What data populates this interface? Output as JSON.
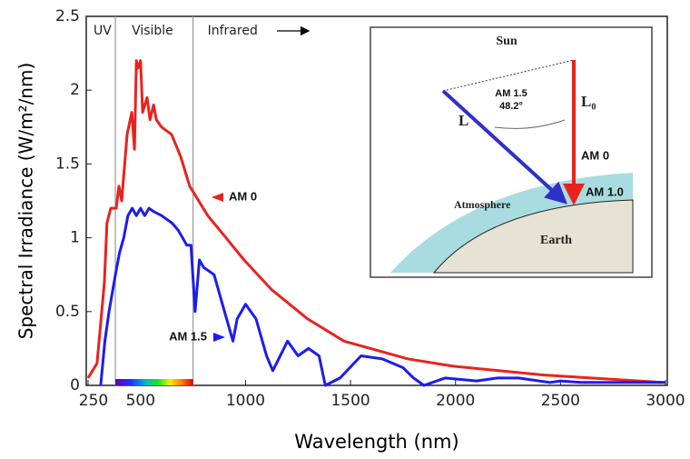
{
  "chart_data": {
    "type": "line",
    "y_label": "Spectral Irradiance (W/m²/nm)",
    "x_label": "Wavelength (nm)",
    "xlim": [
      250,
      3000
    ],
    "xticks": [
      250,
      500,
      1000,
      1500,
      2000,
      2500,
      3000
    ],
    "ylim": [
      0,
      2.5
    ],
    "yticks": [
      0,
      0.5,
      1,
      1.5,
      2,
      2.5
    ],
    "regions": [
      "UV",
      "Visible",
      "Infrared"
    ],
    "region_boundaries": [
      380,
      750
    ],
    "series": [
      {
        "name": "AM 0",
        "color": "#e8231f",
        "x": [
          250,
          293,
          328,
          340,
          358,
          384,
          397,
          410,
          436,
          458,
          471,
          480,
          488,
          500,
          510,
          531,
          545,
          562,
          575,
          600,
          648,
          691,
          734,
          820,
          907,
          993,
          1123,
          1296,
          1469,
          1772,
          1988,
          2420,
          2985
        ],
        "values": [
          0.05,
          0.15,
          0.7,
          1.1,
          1.2,
          1.2,
          1.35,
          1.25,
          1.7,
          1.85,
          1.6,
          2.2,
          2.15,
          2.2,
          1.85,
          1.95,
          1.8,
          1.9,
          1.8,
          1.75,
          1.7,
          1.55,
          1.35,
          1.15,
          1.0,
          0.85,
          0.65,
          0.45,
          0.3,
          0.18,
          0.13,
          0.07,
          0.02
        ]
      },
      {
        "name": "AM 1.5",
        "color": "#1c1cf0",
        "x": [
          310,
          330,
          350,
          380,
          400,
          420,
          440,
          460,
          480,
          500,
          520,
          540,
          560,
          600,
          650,
          680,
          700,
          720,
          740,
          760,
          780,
          800,
          850,
          900,
          940,
          960,
          1000,
          1050,
          1100,
          1130,
          1200,
          1250,
          1300,
          1350,
          1380,
          1450,
          1550,
          1650,
          1750,
          1800,
          1850,
          1950,
          2100,
          2200,
          2300,
          2450,
          2500,
          2600,
          3000
        ],
        "values": [
          0,
          0.3,
          0.5,
          0.75,
          0.9,
          1.0,
          1.15,
          1.2,
          1.15,
          1.2,
          1.15,
          1.2,
          1.18,
          1.15,
          1.1,
          1.05,
          1.0,
          0.95,
          0.95,
          0.5,
          0.85,
          0.8,
          0.75,
          0.5,
          0.3,
          0.45,
          0.55,
          0.45,
          0.2,
          0.1,
          0.3,
          0.2,
          0.25,
          0.2,
          0,
          0.05,
          0.2,
          0.18,
          0.12,
          0.05,
          0,
          0.05,
          0.03,
          0.05,
          0.05,
          0.02,
          0.03,
          0.02,
          0.02
        ]
      }
    ],
    "inset": {
      "sun": "Sun",
      "am15": "AM 1.5",
      "angle": "48.2°",
      "l": "L",
      "l0": "L₀",
      "am0": "AM 0",
      "am10": "AM 1.0",
      "atmosphere": "Atmosphere",
      "earth": "Earth"
    }
  }
}
